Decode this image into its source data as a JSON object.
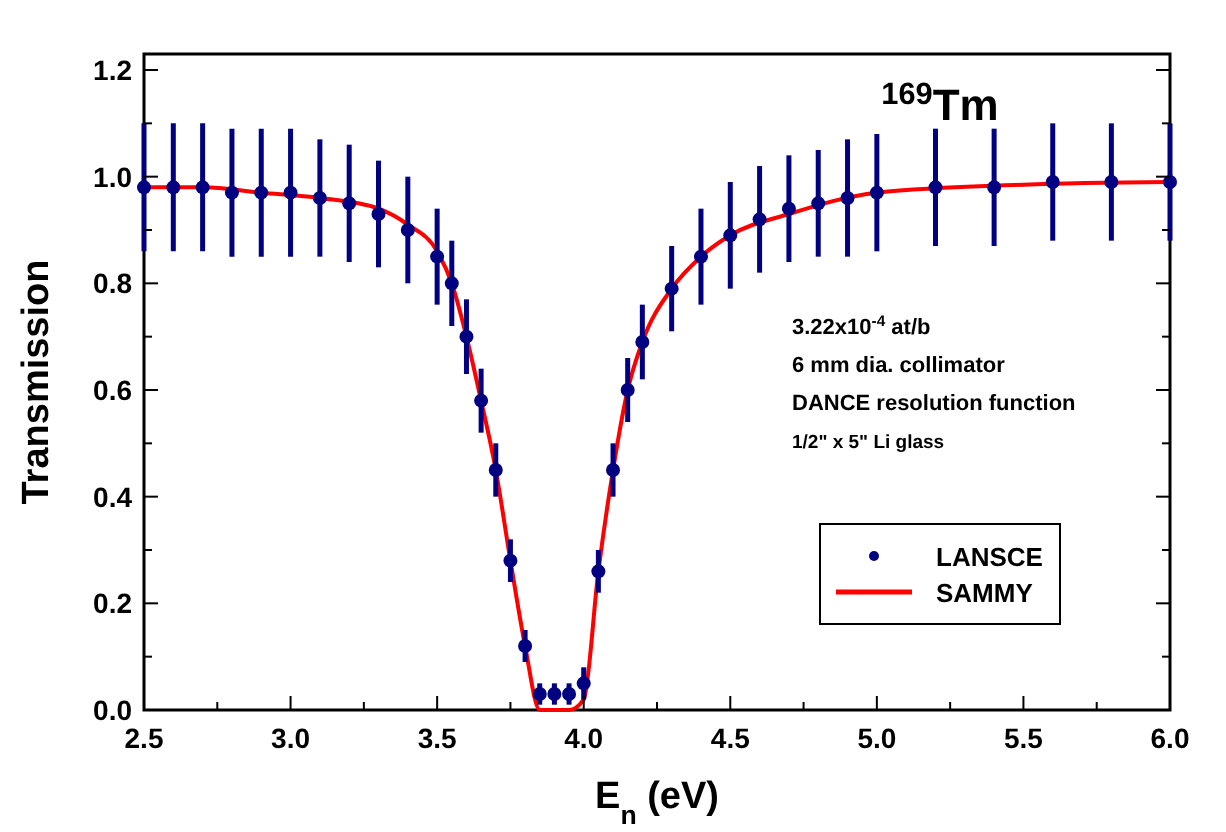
{
  "chart_data": {
    "type": "scatter",
    "title": "$^{169}$Tm",
    "xlabel": "E$_{n}$ (eV)",
    "ylabel": "Transmission",
    "annotations": [
      "3.22x10$^{-4}$ at/b",
      "6 mm dia. collimator",
      "DANCE resolution function",
      "1/2\" x 5\" Li glass"
    ],
    "xlim": [
      2.5,
      6.0
    ],
    "xticks": [
      {
        "value": 2.5,
        "label": "2.5"
      },
      {
        "value": 2.75,
        "label": null
      },
      {
        "value": 3,
        "label": "3.0"
      },
      {
        "value": 3.25,
        "label": null
      },
      {
        "value": 3.5,
        "label": "3.5"
      },
      {
        "value": 3.75,
        "label": null
      },
      {
        "value": 4,
        "label": "4.0"
      },
      {
        "value": 4.25,
        "label": null
      },
      {
        "value": 4.5,
        "label": "4.5"
      },
      {
        "value": 4.75,
        "label": null
      },
      {
        "value": 5,
        "label": "5.0"
      },
      {
        "value": 5.25,
        "label": null
      },
      {
        "value": 5.5,
        "label": "5.5"
      },
      {
        "value": 5.75,
        "label": null
      },
      {
        "value": 6,
        "label": "6.0"
      }
    ],
    "ylim": [
      0,
      1.23
    ],
    "yticks": [
      {
        "value": 0,
        "label": "0.0"
      },
      {
        "value": 0.1,
        "label": null
      },
      {
        "value": 0.2,
        "label": "0.2"
      },
      {
        "value": 0.3,
        "label": null
      },
      {
        "value": 0.4,
        "label": "0.4"
      },
      {
        "value": 0.5,
        "label": null
      },
      {
        "value": 0.6,
        "label": "0.6"
      },
      {
        "value": 0.7,
        "label": null
      },
      {
        "value": 0.8,
        "label": "0.8"
      },
      {
        "value": 0.9,
        "label": null
      },
      {
        "value": 1,
        "label": "1.0"
      },
      {
        "value": 1.1,
        "label": null
      },
      {
        "value": 1.2,
        "label": "1.2"
      }
    ],
    "legend": "right",
    "grid": false,
    "series": [
      {
        "name": "LANSCE",
        "marker": "circle",
        "color": "#000080",
        "x": [
          2.5,
          2.6,
          2.7,
          2.8,
          2.9,
          3.0,
          3.1,
          3.2,
          3.3,
          3.4,
          3.5,
          3.55,
          3.6,
          3.65,
          3.7,
          3.75,
          3.8,
          3.85,
          3.9,
          3.95,
          4.0,
          4.05,
          4.1,
          4.15,
          4.2,
          4.3,
          4.4,
          4.5,
          4.6,
          4.7,
          4.8,
          4.9,
          5.0,
          5.2,
          5.4,
          5.6,
          5.8,
          6.0
        ],
        "values": [
          0.98,
          0.98,
          0.98,
          0.97,
          0.97,
          0.97,
          0.96,
          0.95,
          0.93,
          0.9,
          0.85,
          0.8,
          0.7,
          0.58,
          0.45,
          0.28,
          0.12,
          0.03,
          0.03,
          0.03,
          0.05,
          0.26,
          0.45,
          0.6,
          0.69,
          0.79,
          0.85,
          0.89,
          0.92,
          0.94,
          0.95,
          0.96,
          0.97,
          0.98,
          0.98,
          0.99,
          0.99,
          0.99
        ],
        "errors": [
          0.12,
          0.12,
          0.12,
          0.12,
          0.12,
          0.12,
          0.11,
          0.11,
          0.1,
          0.1,
          0.09,
          0.08,
          0.07,
          0.06,
          0.05,
          0.04,
          0.03,
          0.02,
          0.02,
          0.02,
          0.03,
          0.04,
          0.05,
          0.06,
          0.07,
          0.08,
          0.09,
          0.1,
          0.1,
          0.1,
          0.1,
          0.11,
          0.11,
          0.11,
          0.11,
          0.11,
          0.11,
          0.11
        ]
      },
      {
        "name": "SAMMY",
        "type": "line",
        "color": "#ff0000",
        "line_style": "solid",
        "x": [
          2.5,
          2.7,
          2.9,
          3.1,
          3.3,
          3.4,
          3.5,
          3.55,
          3.6,
          3.65,
          3.7,
          3.75,
          3.8,
          3.85,
          3.875,
          3.925,
          3.95,
          4.0,
          4.05,
          4.1,
          4.15,
          4.2,
          4.3,
          4.4,
          4.5,
          4.7,
          5.0,
          5.5,
          6.0
        ],
        "values": [
          0.98,
          0.98,
          0.97,
          0.96,
          0.94,
          0.91,
          0.86,
          0.8,
          0.7,
          0.58,
          0.45,
          0.28,
          0.12,
          0.0,
          0.0,
          0.0,
          0.0,
          0.02,
          0.26,
          0.45,
          0.6,
          0.69,
          0.79,
          0.85,
          0.89,
          0.93,
          0.97,
          0.985,
          0.99
        ]
      }
    ]
  }
}
